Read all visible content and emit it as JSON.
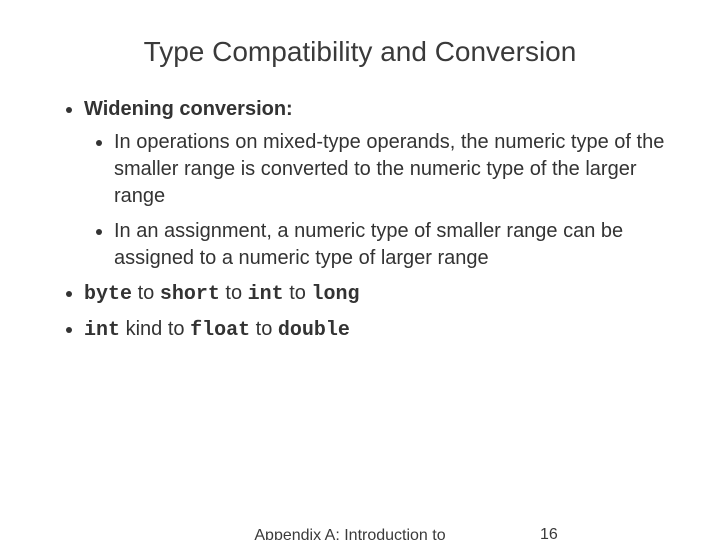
{
  "slide": {
    "title": "Type Compatibility and Conversion",
    "bullets": {
      "b1_label": "Widening conversion:",
      "b1_sub1": "In operations on mixed-type operands, the numeric type of the smaller range is converted to the numeric type of the larger range",
      "b1_sub2": "In an assignment, a numeric type of smaller range can be assigned to a numeric type of larger range",
      "b2": {
        "t1": "byte",
        "s1": " to ",
        "t2": "short",
        "s2": " to ",
        "t3": "int",
        "s3": " to ",
        "t4": "long"
      },
      "b3": {
        "t1": "int",
        "s1": " kind to ",
        "t2": "float",
        "s2": " to ",
        "t3": "double"
      }
    },
    "footer": {
      "center": "Appendix A: Introduction to Java",
      "pagenum": "16"
    },
    "style": {
      "title_fontsize": 28,
      "body_fontsize": 20,
      "footer_fontsize": 16,
      "text_color": "#333333",
      "background_color": "#ffffff",
      "mono_font": "Courier New"
    }
  }
}
